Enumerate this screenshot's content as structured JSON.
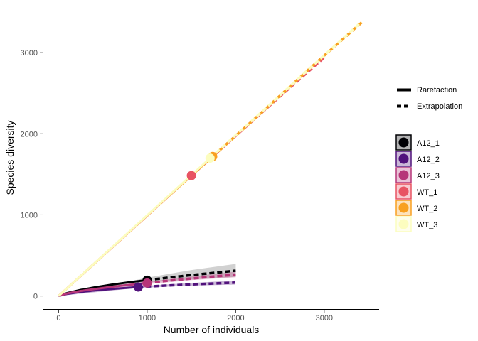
{
  "chart_data": {
    "type": "line",
    "title": "",
    "xlabel": "Number of individuals",
    "ylabel": "Species diversity",
    "xlim": [
      -180,
      3620
    ],
    "ylim": [
      -170,
      3580
    ],
    "xticks": [
      0,
      1000,
      2000,
      3000
    ],
    "yticks": [
      0,
      1000,
      2000,
      3000
    ],
    "xtick_labels": [
      "0",
      "1000",
      "2000",
      "3000"
    ],
    "ytick_labels": [
      "0",
      "1000",
      "2000",
      "3000"
    ],
    "grid": false,
    "legend_position": "right",
    "method_legend": [
      {
        "label": "Rarefaction",
        "style": "solid"
      },
      {
        "label": "Extrapolation",
        "style": "dashed"
      }
    ],
    "series": [
      {
        "name": "A12_1",
        "color": "#000004",
        "observed": [
          1000,
          195
        ],
        "rarefaction": [
          [
            0,
            0
          ],
          [
            100,
            38
          ],
          [
            250,
            75
          ],
          [
            400,
            105
          ],
          [
            600,
            140
          ],
          [
            800,
            170
          ],
          [
            1000,
            195
          ]
        ],
        "extrapolation": [
          [
            1000,
            195
          ],
          [
            1250,
            228
          ],
          [
            1500,
            258
          ],
          [
            1750,
            285
          ],
          [
            2000,
            312
          ]
        ],
        "ci": [
          [
            1000,
            165,
            225
          ],
          [
            1500,
            205,
            320
          ],
          [
            2000,
            235,
            395
          ]
        ]
      },
      {
        "name": "A12_2",
        "color": "#51127C",
        "observed": [
          900,
          110
        ],
        "rarefaction": [
          [
            0,
            0
          ],
          [
            100,
            26
          ],
          [
            250,
            50
          ],
          [
            450,
            72
          ],
          [
            650,
            90
          ],
          [
            900,
            110
          ]
        ],
        "extrapolation": [
          [
            900,
            110
          ],
          [
            1200,
            128
          ],
          [
            1500,
            143
          ],
          [
            1800,
            156
          ],
          [
            1990,
            165
          ]
        ],
        "ci": [
          [
            900,
            100,
            120
          ],
          [
            1500,
            128,
            160
          ],
          [
            1990,
            140,
            190
          ]
        ]
      },
      {
        "name": "A12_3",
        "color": "#B63679",
        "observed": [
          1000,
          160
        ],
        "rarefaction": [
          [
            0,
            0
          ],
          [
            100,
            32
          ],
          [
            250,
            62
          ],
          [
            450,
            92
          ],
          [
            700,
            125
          ],
          [
            1000,
            160
          ]
        ],
        "extrapolation": [
          [
            1000,
            160
          ],
          [
            1250,
            190
          ],
          [
            1500,
            215
          ],
          [
            1750,
            240
          ],
          [
            2000,
            262
          ]
        ],
        "ci": [
          [
            1000,
            145,
            175
          ],
          [
            1500,
            195,
            240
          ],
          [
            2000,
            230,
            300
          ]
        ]
      },
      {
        "name": "WT_1",
        "color": "#E85362",
        "observed": [
          1500,
          1485
        ],
        "rarefaction": [
          [
            0,
            0
          ],
          [
            500,
            495
          ],
          [
            1000,
            990
          ],
          [
            1500,
            1485
          ]
        ],
        "extrapolation": [
          [
            1500,
            1485
          ],
          [
            2000,
            1975
          ],
          [
            2500,
            2460
          ],
          [
            3000,
            2940
          ]
        ],
        "ci": []
      },
      {
        "name": "WT_2",
        "color": "#F8A020",
        "observed": [
          1740,
          1720
        ],
        "rarefaction": [
          [
            0,
            0
          ],
          [
            600,
            595
          ],
          [
            1200,
            1190
          ],
          [
            1740,
            1720
          ]
        ],
        "extrapolation": [
          [
            1740,
            1720
          ],
          [
            2300,
            2270
          ],
          [
            2800,
            2770
          ],
          [
            3440,
            3390
          ]
        ],
        "ci": []
      },
      {
        "name": "WT_3",
        "color": "#FCFDBF",
        "observed": [
          1710,
          1700
        ],
        "rarefaction": [
          [
            0,
            0
          ],
          [
            600,
            597
          ],
          [
            1200,
            1193
          ],
          [
            1710,
            1700
          ]
        ],
        "extrapolation": [
          [
            1710,
            1700
          ],
          [
            2300,
            2275
          ],
          [
            2900,
            2870
          ],
          [
            3420,
            3380
          ]
        ],
        "ci": []
      }
    ]
  }
}
